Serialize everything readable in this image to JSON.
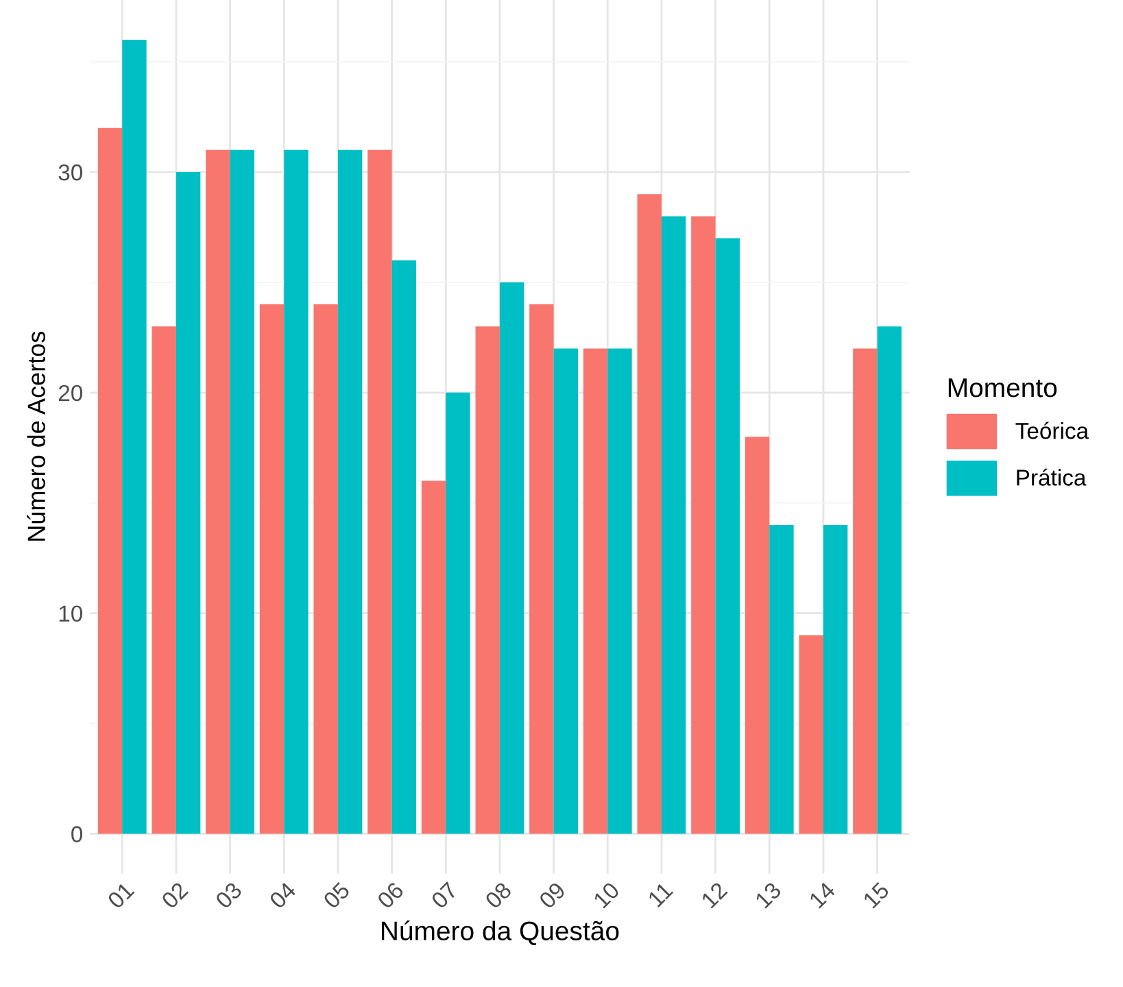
{
  "chart_data": {
    "type": "bar",
    "xlabel": "Número da Questão",
    "ylabel": "Número de Acertos",
    "legend_title": "Momento",
    "categories": [
      "01",
      "02",
      "03",
      "04",
      "05",
      "06",
      "07",
      "08",
      "09",
      "10",
      "11",
      "12",
      "13",
      "14",
      "15"
    ],
    "series": [
      {
        "name": "Teórica",
        "color": "#f8766d",
        "values": [
          32,
          23,
          31,
          24,
          24,
          31,
          16,
          23,
          24,
          22,
          29,
          28,
          18,
          9,
          22
        ]
      },
      {
        "name": "Prática",
        "color": "#00bfc4",
        "values": [
          36,
          30,
          31,
          31,
          31,
          26,
          20,
          25,
          22,
          22,
          28,
          27,
          14,
          14,
          23
        ]
      }
    ],
    "ylim": [
      -1.8,
      37.8
    ],
    "yticks": [
      0,
      {
        "value": 5,
        "label": null
      },
      10,
      {
        "value": 15,
        "label": null
      },
      20,
      {
        "value": 25,
        "label": null
      },
      30,
      {
        "value": 35,
        "label": null
      }
    ],
    "grid": true,
    "legend": "right"
  }
}
